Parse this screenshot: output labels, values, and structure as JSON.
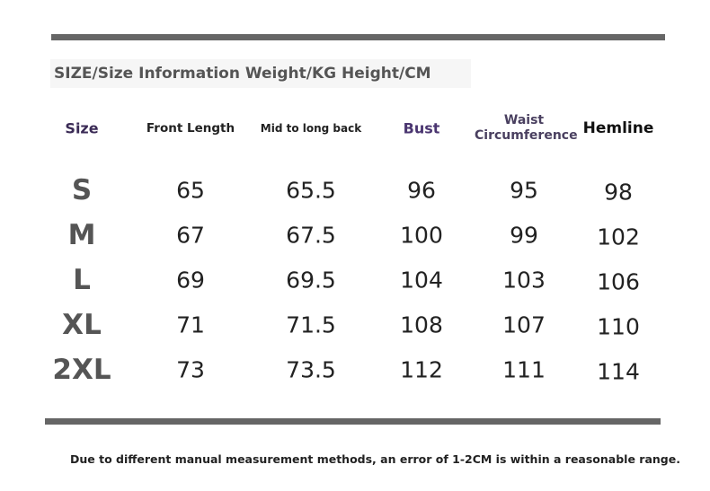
{
  "header": {
    "title": "SIZE/Size Information Weight/KG Height/CM"
  },
  "table": {
    "columns": [
      "Size",
      "Front Length",
      "Mid to long back",
      "Bust",
      "Waist Circumference",
      "Hemline"
    ],
    "rows": [
      [
        "S",
        65,
        65.5,
        96,
        95,
        98
      ],
      [
        "M",
        67,
        67.5,
        100,
        99,
        102
      ],
      [
        "L",
        69,
        69.5,
        104,
        103,
        106
      ],
      [
        "XL",
        71,
        71.5,
        108,
        107,
        110
      ],
      [
        "2XL",
        73,
        73.5,
        112,
        111,
        114
      ]
    ]
  },
  "footnote": "Due to different manual measurement methods, an error of 1-2CM is within a reasonable range."
}
